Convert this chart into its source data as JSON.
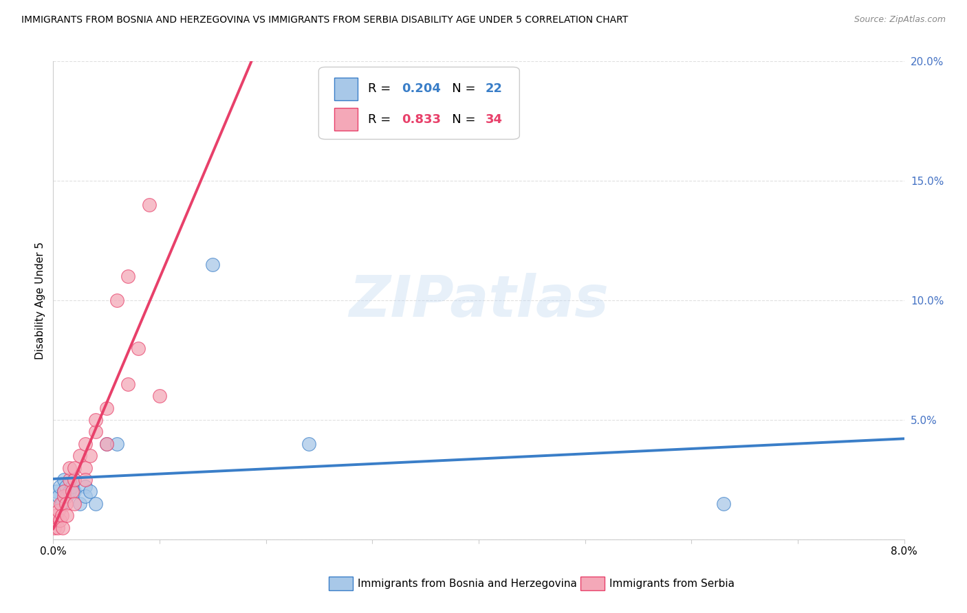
{
  "title": "IMMIGRANTS FROM BOSNIA AND HERZEGOVINA VS IMMIGRANTS FROM SERBIA DISABILITY AGE UNDER 5 CORRELATION CHART",
  "source": "Source: ZipAtlas.com",
  "ylabel": "Disability Age Under 5",
  "xlim": [
    0.0,
    0.08
  ],
  "ylim": [
    0.0,
    0.2
  ],
  "xticks": [
    0.0,
    0.01,
    0.02,
    0.03,
    0.04,
    0.05,
    0.06,
    0.07,
    0.08
  ],
  "xtick_labels": [
    "0.0%",
    "",
    "",
    "",
    "",
    "",
    "",
    "",
    "8.0%"
  ],
  "yticks": [
    0.0,
    0.05,
    0.1,
    0.15,
    0.2
  ],
  "ytick_labels": [
    "",
    "5.0%",
    "10.0%",
    "15.0%",
    "20.0%"
  ],
  "bosnia_x": [
    0.0003,
    0.0005,
    0.0006,
    0.0008,
    0.001,
    0.001,
    0.0012,
    0.0013,
    0.0015,
    0.0018,
    0.002,
    0.002,
    0.0025,
    0.003,
    0.003,
    0.0035,
    0.004,
    0.005,
    0.006,
    0.015,
    0.024,
    0.063
  ],
  "bosnia_y": [
    0.02,
    0.018,
    0.022,
    0.015,
    0.02,
    0.025,
    0.022,
    0.018,
    0.02,
    0.022,
    0.02,
    0.025,
    0.015,
    0.022,
    0.018,
    0.02,
    0.015,
    0.04,
    0.04,
    0.115,
    0.04,
    0.015
  ],
  "serbia_x": [
    0.0001,
    0.0002,
    0.0003,
    0.0004,
    0.0005,
    0.0006,
    0.0007,
    0.0008,
    0.0009,
    0.001,
    0.001,
    0.0012,
    0.0013,
    0.0015,
    0.0015,
    0.0018,
    0.002,
    0.002,
    0.002,
    0.0025,
    0.003,
    0.003,
    0.003,
    0.0035,
    0.004,
    0.004,
    0.005,
    0.005,
    0.006,
    0.007,
    0.007,
    0.008,
    0.009,
    0.01
  ],
  "serbia_y": [
    0.005,
    0.008,
    0.01,
    0.005,
    0.012,
    0.008,
    0.015,
    0.01,
    0.005,
    0.018,
    0.02,
    0.015,
    0.01,
    0.025,
    0.03,
    0.02,
    0.025,
    0.03,
    0.015,
    0.035,
    0.03,
    0.04,
    0.025,
    0.035,
    0.045,
    0.05,
    0.04,
    0.055,
    0.1,
    0.065,
    0.11,
    0.08,
    0.14,
    0.06
  ],
  "R_bosnia": 0.204,
  "N_bosnia": 22,
  "R_serbia": 0.833,
  "N_serbia": 34,
  "bosnia_color": "#A8C8E8",
  "serbia_color": "#F4A8B8",
  "bosnia_line_color": "#3A7EC8",
  "serbia_line_color": "#E8406A",
  "watermark": "ZIPatlas",
  "background_color": "#ffffff",
  "grid_color": "#dddddd"
}
